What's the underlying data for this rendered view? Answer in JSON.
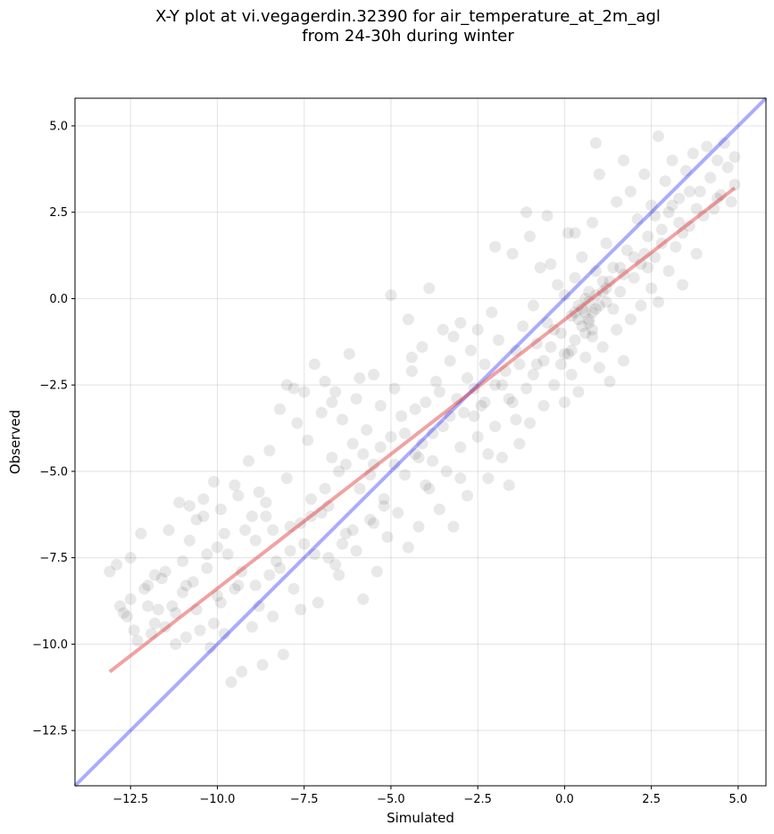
{
  "chart_data": {
    "type": "scatter",
    "title": "X-Y plot at vi.vegagerdin.32390 for air_temperature_at_2m_agl",
    "subtitle": "from 24-30h during winter",
    "xlabel": "Simulated",
    "ylabel": "Observed",
    "xlim": [
      -14.1,
      5.8
    ],
    "ylim": [
      -14.1,
      5.8
    ],
    "xticks": [
      -12.5,
      -10.0,
      -7.5,
      -5.0,
      -2.5,
      0.0,
      2.5,
      5.0
    ],
    "xtick_labels": [
      "−12.5",
      "−10.0",
      "−7.5",
      "−5.0",
      "−2.5",
      "0.0",
      "2.5",
      "5.0"
    ],
    "yticks": [
      -12.5,
      -10.0,
      -7.5,
      -5.0,
      -2.5,
      0.0,
      2.5,
      5.0
    ],
    "ytick_labels": [
      "−12.5",
      "−10.0",
      "−7.5",
      "−5.0",
      "−2.5",
      "0.0",
      "2.5",
      "5.0"
    ],
    "grid": true,
    "marker_color": "#000000",
    "points": [
      [
        -13.1,
        -7.9
      ],
      [
        -12.9,
        -7.7
      ],
      [
        -12.8,
        -8.9
      ],
      [
        -12.7,
        -9.1
      ],
      [
        -12.6,
        -9.2
      ],
      [
        -12.5,
        -8.7
      ],
      [
        -12.5,
        -7.5
      ],
      [
        -12.2,
        -6.8
      ],
      [
        -12.1,
        -8.4
      ],
      [
        -12.0,
        -8.3
      ],
      [
        -11.9,
        -9.7
      ],
      [
        -11.8,
        -9.4
      ],
      [
        -11.8,
        -8.0
      ],
      [
        -11.6,
        -8.1
      ],
      [
        -11.5,
        -9.5
      ],
      [
        -11.4,
        -6.7
      ],
      [
        -11.3,
        -8.9
      ],
      [
        -11.2,
        -9.1
      ],
      [
        -11.1,
        -5.9
      ],
      [
        -11.0,
        -8.5
      ],
      [
        -11.0,
        -7.6
      ],
      [
        -10.9,
        -9.8
      ],
      [
        -10.8,
        -6.0
      ],
      [
        -10.7,
        -8.2
      ],
      [
        -10.6,
        -6.4
      ],
      [
        -10.5,
        -9.6
      ],
      [
        -10.4,
        -5.8
      ],
      [
        -10.3,
        -7.8
      ],
      [
        -10.2,
        -10.1
      ],
      [
        -10.1,
        -5.3
      ],
      [
        -10.0,
        -8.6
      ],
      [
        -10.0,
        -7.2
      ],
      [
        -9.9,
        -6.1
      ],
      [
        -9.8,
        -9.7
      ],
      [
        -9.7,
        -7.4
      ],
      [
        -9.6,
        -11.1
      ],
      [
        -9.5,
        -5.4
      ],
      [
        -9.4,
        -8.3
      ],
      [
        -9.3,
        -10.8
      ],
      [
        -9.2,
        -6.7
      ],
      [
        -9.1,
        -4.7
      ],
      [
        -9.0,
        -9.5
      ],
      [
        -8.9,
        -7.0
      ],
      [
        -8.8,
        -5.6
      ],
      [
        -8.8,
        -8.9
      ],
      [
        -8.7,
        -10.6
      ],
      [
        -8.6,
        -6.3
      ],
      [
        -8.5,
        -8.0
      ],
      [
        -8.4,
        -9.2
      ],
      [
        -8.3,
        -7.6
      ],
      [
        -8.2,
        -3.2
      ],
      [
        -8.1,
        -10.3
      ],
      [
        -8.0,
        -5.2
      ],
      [
        -8.0,
        -2.5
      ],
      [
        -7.9,
        -6.6
      ],
      [
        -7.8,
        -8.4
      ],
      [
        -7.7,
        -3.6
      ],
      [
        -7.6,
        -9.0
      ],
      [
        -7.5,
        -7.1
      ],
      [
        -7.5,
        -2.7
      ],
      [
        -7.4,
        -4.1
      ],
      [
        -7.3,
        -5.8
      ],
      [
        -7.2,
        -1.9
      ],
      [
        -7.1,
        -8.8
      ],
      [
        -7.0,
        -3.3
      ],
      [
        -7.0,
        -6.2
      ],
      [
        -6.9,
        -2.4
      ],
      [
        -6.8,
        -7.5
      ],
      [
        -6.7,
        -4.6
      ],
      [
        -6.6,
        -2.7
      ],
      [
        -6.5,
        -8.0
      ],
      [
        -6.5,
        -5.0
      ],
      [
        -6.4,
        -3.5
      ],
      [
        -6.3,
        -6.8
      ],
      [
        -6.2,
        -1.6
      ],
      [
        -6.1,
        -4.2
      ],
      [
        -6.0,
        -7.3
      ],
      [
        -6.0,
        -2.9
      ],
      [
        -5.9,
        -5.5
      ],
      [
        -5.8,
        -8.7
      ],
      [
        -5.7,
        -3.8
      ],
      [
        -5.6,
        -6.4
      ],
      [
        -5.5,
        -2.2
      ],
      [
        -5.5,
        -4.8
      ],
      [
        -5.4,
        -7.9
      ],
      [
        -5.3,
        -3.1
      ],
      [
        -5.2,
        -5.8
      ],
      [
        -5.1,
        -6.9
      ],
      [
        -5.0,
        0.1
      ],
      [
        -5.0,
        -4.0
      ],
      [
        -4.9,
        -2.6
      ],
      [
        -4.8,
        -6.2
      ],
      [
        -4.7,
        -3.4
      ],
      [
        -4.6,
        -5.1
      ],
      [
        -4.5,
        -7.2
      ],
      [
        -4.5,
        -0.6
      ],
      [
        -4.4,
        -2.1
      ],
      [
        -4.3,
        -4.5
      ],
      [
        -4.2,
        -6.6
      ],
      [
        -4.1,
        -1.4
      ],
      [
        -4.0,
        -3.0
      ],
      [
        -4.0,
        -5.4
      ],
      [
        -3.9,
        0.3
      ],
      [
        -3.8,
        -4.7
      ],
      [
        -3.7,
        -2.4
      ],
      [
        -3.6,
        -6.1
      ],
      [
        -3.5,
        -0.9
      ],
      [
        -3.5,
        -3.7
      ],
      [
        -3.4,
        -5.0
      ],
      [
        -3.3,
        -1.8
      ],
      [
        -3.2,
        -6.6
      ],
      [
        -3.1,
        -2.9
      ],
      [
        -3.0,
        -4.3
      ],
      [
        -3.0,
        -0.7
      ],
      [
        -2.9,
        -3.3
      ],
      [
        -2.8,
        -5.7
      ],
      [
        -2.7,
        -1.5
      ],
      [
        -2.6,
        -2.6
      ],
      [
        -2.5,
        -4.0
      ],
      [
        -2.5,
        -0.9
      ],
      [
        -2.4,
        -3.1
      ],
      [
        -2.3,
        -1.9
      ],
      [
        -2.2,
        -5.2
      ],
      [
        -2.1,
        -0.4
      ],
      [
        -2.0,
        -2.5
      ],
      [
        -2.0,
        -3.7
      ],
      [
        -1.9,
        -1.2
      ],
      [
        -1.8,
        -4.6
      ],
      [
        -1.7,
        -2.1
      ],
      [
        -1.6,
        -5.4
      ],
      [
        -1.5,
        1.3
      ],
      [
        -1.5,
        -3.0
      ],
      [
        -1.4,
        -1.5
      ],
      [
        -1.3,
        -4.2
      ],
      [
        -1.2,
        -0.8
      ],
      [
        -1.1,
        -2.6
      ],
      [
        -1.0,
        1.8
      ],
      [
        -1.0,
        -3.6
      ],
      [
        -0.9,
        -0.2
      ],
      [
        -0.8,
        -1.9
      ],
      [
        -0.7,
        0.9
      ],
      [
        -0.6,
        -3.1
      ],
      [
        -0.5,
        -0.7
      ],
      [
        -0.5,
        2.4
      ],
      [
        -0.4,
        -1.4
      ],
      [
        -0.3,
        -2.5
      ],
      [
        -0.2,
        0.4
      ],
      [
        -0.1,
        -1.0
      ],
      [
        0.0,
        -3.0
      ],
      [
        0.0,
        0.1
      ],
      [
        0.1,
        1.9
      ],
      [
        0.1,
        -1.6
      ],
      [
        0.2,
        -0.5
      ],
      [
        0.2,
        -2.2
      ],
      [
        0.3,
        0.6
      ],
      [
        0.3,
        -1.2
      ],
      [
        0.4,
        -0.2
      ],
      [
        0.4,
        -2.7
      ],
      [
        0.5,
        1.2
      ],
      [
        0.5,
        -0.8
      ],
      [
        0.6,
        -0.4
      ],
      [
        0.6,
        -1.7
      ],
      [
        0.7,
        0.2
      ],
      [
        0.7,
        -0.6
      ],
      [
        0.8,
        2.2
      ],
      [
        0.8,
        -1.1
      ],
      [
        0.9,
        0.8
      ],
      [
        0.9,
        -0.3
      ],
      [
        1.0,
        3.6
      ],
      [
        1.0,
        -2.0
      ],
      [
        1.1,
        0.5
      ],
      [
        1.1,
        -1.4
      ],
      [
        1.2,
        1.6
      ],
      [
        1.2,
        -0.1
      ],
      [
        1.3,
        -2.4
      ],
      [
        1.4,
        0.9
      ],
      [
        1.5,
        2.8
      ],
      [
        1.5,
        -0.9
      ],
      [
        1.6,
        0.2
      ],
      [
        1.7,
        -1.8
      ],
      [
        1.8,
        1.4
      ],
      [
        1.9,
        3.1
      ],
      [
        1.9,
        -0.6
      ],
      [
        2.0,
        0.6
      ],
      [
        2.1,
        2.3
      ],
      [
        2.2,
        -0.2
      ],
      [
        2.2,
        1.0
      ],
      [
        2.3,
        3.6
      ],
      [
        2.4,
        1.8
      ],
      [
        2.5,
        0.3
      ],
      [
        2.5,
        2.7
      ],
      [
        2.6,
        1.2
      ],
      [
        2.7,
        4.7
      ],
      [
        2.7,
        -0.1
      ],
      [
        2.8,
        2.0
      ],
      [
        2.9,
        3.4
      ],
      [
        3.0,
        0.8
      ],
      [
        3.0,
        2.5
      ],
      [
        3.1,
        4.0
      ],
      [
        3.2,
        1.5
      ],
      [
        3.3,
        2.9
      ],
      [
        3.4,
        0.4
      ],
      [
        3.5,
        3.7
      ],
      [
        3.6,
        2.1
      ],
      [
        3.7,
        4.2
      ],
      [
        3.8,
        1.3
      ],
      [
        3.9,
        3.1
      ],
      [
        4.0,
        2.4
      ],
      [
        4.1,
        4.4
      ],
      [
        4.2,
        3.5
      ],
      [
        4.3,
        2.6
      ],
      [
        4.4,
        4.0
      ],
      [
        4.5,
        3.0
      ],
      [
        4.6,
        4.5
      ],
      [
        4.7,
        3.8
      ],
      [
        4.8,
        2.8
      ],
      [
        4.9,
        4.1
      ],
      [
        4.9,
        3.3
      ],
      [
        1.7,
        4.0
      ],
      [
        0.9,
        4.5
      ],
      [
        -1.1,
        2.5
      ],
      [
        -2.0,
        1.5
      ],
      [
        0.3,
        1.9
      ],
      [
        -0.4,
        1.0
      ],
      [
        -12.4,
        -9.6
      ],
      [
        -11.5,
        -7.9
      ],
      [
        -10.9,
        -8.3
      ],
      [
        -10.6,
        -9.0
      ],
      [
        -9.9,
        -8.8
      ],
      [
        -9.3,
        -7.9
      ],
      [
        -9.0,
        -6.3
      ],
      [
        -8.6,
        -5.9
      ],
      [
        -7.9,
        -7.3
      ],
      [
        -7.3,
        -6.3
      ],
      [
        -6.8,
        -6.0
      ],
      [
        -6.3,
        -4.8
      ],
      [
        -5.8,
        -4.5
      ],
      [
        -5.3,
        -4.3
      ],
      [
        -4.9,
        -4.8
      ],
      [
        -4.3,
        -3.2
      ],
      [
        -3.8,
        -3.9
      ],
      [
        -3.3,
        -3.4
      ],
      [
        -2.8,
        -2.3
      ],
      [
        -2.3,
        -3.0
      ],
      [
        -1.8,
        -2.5
      ],
      [
        -1.3,
        -1.9
      ],
      [
        -0.8,
        -1.3
      ],
      [
        -0.3,
        -0.9
      ],
      [
        0.3,
        -0.4
      ],
      [
        0.7,
        -0.1
      ],
      [
        1.2,
        0.3
      ],
      [
        1.7,
        0.7
      ],
      [
        2.3,
        1.3
      ],
      [
        2.8,
        1.6
      ],
      [
        3.3,
        2.2
      ],
      [
        3.8,
        2.6
      ],
      [
        -12.0,
        -8.9
      ],
      [
        -10.3,
        -7.4
      ],
      [
        -8.4,
        -6.7
      ],
      [
        -6.9,
        -5.5
      ],
      [
        -5.6,
        -5.1
      ],
      [
        -4.2,
        -4.6
      ],
      [
        -3.6,
        -2.7
      ],
      [
        -2.6,
        -3.4
      ],
      [
        -1.6,
        -2.9
      ],
      [
        -0.6,
        -1.8
      ],
      [
        0.6,
        -1.0
      ],
      [
        1.4,
        -0.3
      ],
      [
        2.4,
        0.9
      ],
      [
        3.4,
        1.9
      ],
      [
        4.4,
        2.9
      ],
      [
        0.8,
        -0.4
      ],
      [
        0.5,
        -0.3
      ],
      [
        0.9,
        0.1
      ],
      [
        0.7,
        -0.7
      ],
      [
        0.4,
        -0.6
      ],
      [
        1.0,
        -0.2
      ],
      [
        0.6,
        0.0
      ],
      [
        0.8,
        -0.9
      ],
      [
        1.1,
        0.2
      ],
      [
        0.2,
        -1.5
      ],
      [
        1.3,
        0.5
      ],
      [
        -0.1,
        -1.9
      ],
      [
        1.6,
        0.9
      ],
      [
        2.0,
        1.2
      ],
      [
        2.6,
        2.4
      ],
      [
        3.1,
        2.7
      ],
      [
        3.6,
        3.1
      ],
      [
        -4.6,
        -3.9
      ],
      [
        -5.2,
        -6.0
      ],
      [
        -6.1,
        -6.7
      ],
      [
        -6.6,
        -7.7
      ],
      [
        -7.6,
        -6.5
      ],
      [
        -8.2,
        -7.8
      ],
      [
        -9.5,
        -8.4
      ],
      [
        -10.1,
        -9.4
      ],
      [
        -11.2,
        -10.0
      ],
      [
        -12.3,
        -9.9
      ],
      [
        -11.7,
        -9.0
      ],
      [
        -10.8,
        -7.0
      ],
      [
        -9.8,
        -6.8
      ],
      [
        -8.9,
        -8.3
      ],
      [
        -7.2,
        -7.4
      ],
      [
        -6.4,
        -7.1
      ],
      [
        -5.5,
        -6.5
      ],
      [
        -4.1,
        -4.2
      ],
      [
        -3.9,
        -5.5
      ],
      [
        -3.0,
        -5.2
      ],
      [
        -2.2,
        -4.5
      ],
      [
        -1.4,
        -3.5
      ],
      [
        -0.9,
        -2.2
      ],
      [
        0.0,
        -1.6
      ],
      [
        -3.2,
        -1.1
      ],
      [
        -4.4,
        -1.7
      ],
      [
        -5.9,
        -2.3
      ],
      [
        -6.7,
        -3.0
      ],
      [
        -7.8,
        -2.6
      ],
      [
        -8.5,
        -4.4
      ],
      [
        -9.4,
        -5.7
      ],
      [
        -10.4,
        -6.3
      ]
    ],
    "identity_line": {
      "color": "#0000ff",
      "from": [
        -14.1,
        -14.1
      ],
      "to": [
        5.8,
        5.8
      ]
    },
    "fit_line": {
      "color": "#e03030",
      "from": [
        -13.1,
        -10.8
      ],
      "to": [
        4.9,
        3.2
      ]
    }
  }
}
